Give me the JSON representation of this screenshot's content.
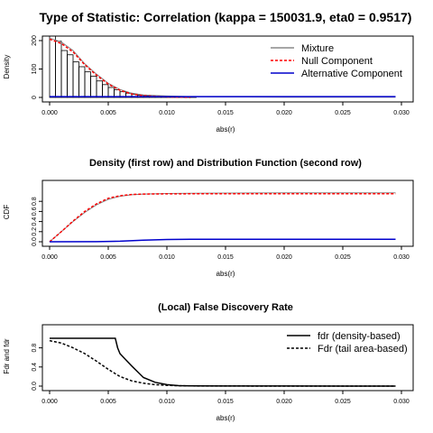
{
  "chart_data": [
    {
      "type": "bar",
      "title": "Type of Statistic: Correlation (kappa = 150031.9, eta0 = 0.9517)",
      "xlabel": "abs(r)",
      "ylabel": "Density",
      "xlim": [
        0,
        0.03
      ],
      "ylim": [
        0,
        200
      ],
      "x_ticks": [
        "0.000",
        "0.005",
        "0.010",
        "0.015",
        "0.020",
        "0.025",
        "0.030"
      ],
      "y_ticks": [
        "0",
        "100",
        "200"
      ],
      "legend_position": "top-right",
      "histogram": {
        "bin_width": 0.0005,
        "bin_starts": [
          0.0,
          0.0005,
          0.001,
          0.0015,
          0.002,
          0.0025,
          0.003,
          0.0035,
          0.004,
          0.0045,
          0.005,
          0.0055,
          0.006,
          0.0065,
          0.007,
          0.0075,
          0.008,
          0.0085,
          0.009,
          0.0095,
          0.01,
          0.0105,
          0.011,
          0.0115,
          0.012
        ],
        "values": [
          272,
          198,
          165,
          150,
          125,
          108,
          90,
          75,
          58,
          45,
          35,
          27,
          20,
          15,
          11,
          8,
          6,
          4,
          3,
          2,
          1.5,
          1,
          1,
          0.5,
          0.5
        ]
      },
      "series": [
        {
          "name": "Mixture",
          "color": "#888888",
          "style": "solid",
          "x": [
            0,
            0.001,
            0.002,
            0.003,
            0.004,
            0.005,
            0.006,
            0.007,
            0.008,
            0.01,
            0.012,
            0.015,
            0.02,
            0.0295
          ],
          "y": [
            209,
            195,
            165,
            118,
            82,
            50,
            28,
            15,
            9,
            5,
            3,
            2,
            1,
            1
          ]
        },
        {
          "name": "Null Component",
          "color": "#ff0000",
          "style": "dashed",
          "x": [
            0,
            0.001,
            0.002,
            0.003,
            0.004,
            0.005,
            0.006,
            0.007,
            0.008,
            0.01,
            0.012
          ],
          "y": [
            205,
            190,
            160,
            115,
            78,
            47,
            25,
            12,
            6,
            2,
            0
          ]
        },
        {
          "name": "Alternative Component",
          "color": "#0000cc",
          "style": "solid",
          "x": [
            0,
            0.005,
            0.01,
            0.015,
            0.02,
            0.0295
          ],
          "y": [
            3,
            3,
            3,
            3,
            3,
            3
          ]
        }
      ]
    },
    {
      "type": "line",
      "title": "Density (first row) and Distribution Function (second row)",
      "xlabel": "abs(r)",
      "ylabel": "CDF",
      "xlim": [
        0,
        0.03
      ],
      "ylim": [
        0,
        1
      ],
      "x_ticks": [
        "0.000",
        "0.005",
        "0.010",
        "0.015",
        "0.020",
        "0.025",
        "0.030"
      ],
      "y_ticks": [
        "0.0",
        "0.2",
        "0.4",
        "0.6",
        "0.8"
      ],
      "series": [
        {
          "color": "#888888",
          "style": "solid",
          "x": [
            0,
            0.001,
            0.002,
            0.003,
            0.004,
            0.005,
            0.006,
            0.007,
            0.008,
            0.01,
            0.012,
            0.015,
            0.02,
            0.0295
          ],
          "y": [
            0,
            0.2,
            0.4,
            0.58,
            0.73,
            0.84,
            0.9,
            0.93,
            0.945,
            0.955,
            0.96,
            0.965,
            0.968,
            0.97
          ]
        },
        {
          "color": "#ff0000",
          "style": "dashed",
          "x": [
            0,
            0.001,
            0.002,
            0.003,
            0.004,
            0.005,
            0.006,
            0.007,
            0.008,
            0.01,
            0.012,
            0.015,
            0.02,
            0.0295
          ],
          "y": [
            0,
            0.2,
            0.41,
            0.6,
            0.75,
            0.86,
            0.91,
            0.935,
            0.945,
            0.948,
            0.95,
            0.95,
            0.95,
            0.95
          ]
        },
        {
          "color": "#0000cc",
          "style": "solid",
          "x": [
            0,
            0.004,
            0.006,
            0.008,
            0.01,
            0.012,
            0.015,
            0.02,
            0.0295
          ],
          "y": [
            0,
            0.002,
            0.01,
            0.03,
            0.045,
            0.05,
            0.05,
            0.05,
            0.05
          ]
        }
      ]
    },
    {
      "type": "line",
      "title": "(Local) False Discovery Rate",
      "xlabel": "abs(r)",
      "ylabel": "Fdr and fdr",
      "xlim": [
        0,
        0.03
      ],
      "ylim": [
        0,
        1
      ],
      "x_ticks": [
        "0.000",
        "0.005",
        "0.010",
        "0.015",
        "0.020",
        "0.025",
        "0.030"
      ],
      "y_ticks": [
        "0.0",
        "0.4",
        "0.8"
      ],
      "legend_position": "top-right",
      "series": [
        {
          "name": "fdr (density-based)",
          "color": "#000000",
          "style": "solid",
          "x": [
            0,
            0.0056,
            0.0058,
            0.006,
            0.0065,
            0.007,
            0.0075,
            0.008,
            0.009,
            0.01,
            0.011,
            0.012,
            0.015,
            0.02,
            0.0295
          ],
          "y": [
            1.0,
            1.0,
            0.8,
            0.68,
            0.55,
            0.42,
            0.3,
            0.18,
            0.08,
            0.03,
            0.01,
            0.005,
            0.002,
            0.001,
            0.0
          ]
        },
        {
          "name": "Fdr (tail area-based)",
          "color": "#000000",
          "style": "dashed",
          "x": [
            0,
            0.001,
            0.002,
            0.003,
            0.004,
            0.005,
            0.006,
            0.007,
            0.008,
            0.009,
            0.01,
            0.011,
            0.012,
            0.015,
            0.02,
            0.0295
          ],
          "y": [
            0.95,
            0.9,
            0.8,
            0.68,
            0.52,
            0.35,
            0.2,
            0.11,
            0.06,
            0.03,
            0.015,
            0.008,
            0.004,
            0.001,
            0.0,
            0.0
          ]
        }
      ]
    }
  ]
}
